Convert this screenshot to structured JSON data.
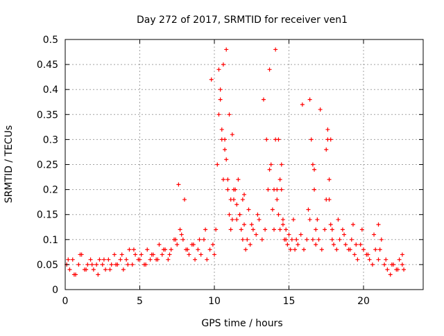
{
  "chart_data": {
    "type": "scatter",
    "title": "Day 272 of 2017, SRMTID for receiver ven1",
    "xlabel": "GPS time / hours",
    "ylabel": "SRMTID / TECUs",
    "xlim": [
      0,
      24
    ],
    "ylim": [
      0,
      0.5
    ],
    "grid": true,
    "marker": "+",
    "color": "#ff0000",
    "x_ticks": [
      {
        "value": 0,
        "label": "0"
      },
      {
        "value": 5,
        "label": "5"
      },
      {
        "value": 10,
        "label": "10"
      },
      {
        "value": 15,
        "label": "15"
      },
      {
        "value": 20,
        "label": "20"
      }
    ],
    "y_ticks": [
      {
        "value": 0,
        "label": "0"
      },
      {
        "value": 0.05,
        "label": "0.05"
      },
      {
        "value": 0.1,
        "label": "0.1"
      },
      {
        "value": 0.15,
        "label": "0.15"
      },
      {
        "value": 0.2,
        "label": "0.2"
      },
      {
        "value": 0.25,
        "label": "0.25"
      },
      {
        "value": 0.3,
        "label": "0.3"
      },
      {
        "value": 0.35,
        "label": "0.35"
      },
      {
        "value": 0.4,
        "label": "0.4"
      },
      {
        "value": 0.45,
        "label": "0.45"
      },
      {
        "value": 0.5,
        "label": "0.5"
      }
    ],
    "series": [
      {
        "name": "SRMTID",
        "x": [
          0.1,
          0.3,
          0.5,
          0.7,
          0.9,
          1.1,
          1.3,
          1.5,
          1.7,
          1.9,
          2.1,
          2.3,
          2.5,
          2.7,
          2.9,
          3.1,
          3.3,
          3.5,
          3.7,
          3.9,
          4.1,
          4.3,
          4.5,
          4.7,
          4.9,
          5.1,
          5.3,
          5.5,
          5.7,
          5.9,
          6.1,
          6.3,
          6.5,
          6.7,
          6.9,
          7.1,
          7.3,
          7.5,
          7.7,
          7.9,
          8.1,
          8.3,
          8.5,
          8.7,
          8.9,
          9.1,
          9.3,
          9.5,
          9.7,
          9.9,
          10.0,
          10.1,
          10.2,
          10.3,
          10.4,
          10.5,
          10.6,
          10.7,
          10.8,
          10.9,
          11.0,
          11.1,
          11.2,
          11.3,
          11.4,
          11.5,
          11.6,
          11.7,
          11.8,
          11.9,
          12.0,
          12.2,
          12.4,
          12.6,
          12.8,
          13.0,
          13.2,
          13.4,
          13.6,
          13.8,
          13.9,
          14.0,
          14.1,
          14.2,
          14.3,
          14.4,
          14.5,
          14.6,
          14.7,
          14.8,
          14.9,
          15.0,
          15.2,
          15.4,
          15.6,
          15.8,
          16.0,
          16.2,
          16.4,
          16.5,
          16.6,
          16.7,
          16.8,
          16.9,
          17.0,
          17.2,
          17.4,
          17.5,
          17.6,
          17.7,
          17.8,
          17.9,
          18.0,
          18.2,
          18.4,
          18.6,
          18.8,
          19.0,
          19.2,
          19.4,
          19.6,
          19.8,
          20.0,
          20.2,
          20.4,
          20.6,
          20.8,
          21.0,
          21.2,
          21.4,
          21.6,
          21.8,
          22.0,
          22.2,
          22.4,
          22.6,
          22.7,
          0.2,
          0.6,
          1.0,
          1.4,
          1.8,
          2.2,
          2.6,
          3.0,
          3.4,
          3.8,
          4.2,
          4.6,
          5.0,
          5.4,
          5.8,
          6.2,
          6.6,
          7.0,
          7.4,
          7.8,
          8.2,
          8.6,
          9.0,
          9.4,
          9.8,
          10.3,
          10.5,
          10.7,
          10.9,
          11.1,
          11.3,
          11.5,
          11.7,
          11.9,
          12.1,
          12.5,
          12.9,
          13.3,
          13.7,
          14.0,
          14.2,
          14.4,
          14.6,
          14.8,
          15.1,
          15.5,
          15.9,
          16.3,
          16.6,
          16.8,
          17.1,
          17.5,
          17.7,
          17.9,
          18.3,
          18.7,
          19.1,
          19.5,
          19.9,
          20.3,
          20.7,
          21.1,
          21.5,
          21.9,
          22.3,
          22.6,
          7.6,
          8.0,
          10.4,
          10.6,
          10.8,
          11.0,
          11.2,
          13.5,
          13.7,
          14.1,
          14.3,
          14.5,
          16.4,
          16.7,
          17.6,
          17.8,
          12.0,
          12.3,
          15.3,
          19.3,
          21.0
        ],
        "values": [
          0.05,
          0.04,
          0.06,
          0.03,
          0.05,
          0.07,
          0.04,
          0.05,
          0.06,
          0.04,
          0.05,
          0.06,
          0.05,
          0.04,
          0.06,
          0.05,
          0.07,
          0.05,
          0.06,
          0.04,
          0.06,
          0.08,
          0.05,
          0.07,
          0.06,
          0.07,
          0.05,
          0.08,
          0.06,
          0.07,
          0.06,
          0.09,
          0.07,
          0.08,
          0.06,
          0.08,
          0.1,
          0.09,
          0.12,
          0.1,
          0.08,
          0.07,
          0.09,
          0.06,
          0.08,
          0.07,
          0.1,
          0.06,
          0.08,
          0.09,
          0.07,
          0.12,
          0.25,
          0.35,
          0.38,
          0.3,
          0.22,
          0.28,
          0.26,
          0.2,
          0.15,
          0.12,
          0.14,
          0.18,
          0.2,
          0.17,
          0.22,
          0.15,
          0.12,
          0.18,
          0.13,
          0.1,
          0.09,
          0.12,
          0.11,
          0.14,
          0.1,
          0.12,
          0.2,
          0.25,
          0.16,
          0.12,
          0.3,
          0.2,
          0.15,
          0.22,
          0.25,
          0.14,
          0.1,
          0.12,
          0.09,
          0.11,
          0.1,
          0.08,
          0.09,
          0.11,
          0.08,
          0.1,
          0.14,
          0.3,
          0.25,
          0.2,
          0.12,
          0.14,
          0.1,
          0.08,
          0.12,
          0.18,
          0.3,
          0.22,
          0.13,
          0.1,
          0.09,
          0.08,
          0.1,
          0.12,
          0.09,
          0.08,
          0.1,
          0.07,
          0.06,
          0.09,
          0.08,
          0.07,
          0.06,
          0.05,
          0.08,
          0.06,
          0.1,
          0.05,
          0.04,
          0.03,
          0.05,
          0.04,
          0.06,
          0.05,
          0.04,
          0.06,
          0.03,
          0.07,
          0.04,
          0.05,
          0.03,
          0.06,
          0.04,
          0.05,
          0.07,
          0.05,
          0.08,
          0.06,
          0.05,
          0.07,
          0.06,
          0.08,
          0.07,
          0.1,
          0.11,
          0.08,
          0.09,
          0.1,
          0.12,
          0.42,
          0.44,
          0.32,
          0.3,
          0.22,
          0.18,
          0.2,
          0.14,
          0.15,
          0.1,
          0.08,
          0.13,
          0.15,
          0.38,
          0.24,
          0.2,
          0.18,
          0.12,
          0.13,
          0.1,
          0.08,
          0.1,
          0.37,
          0.16,
          0.1,
          0.09,
          0.36,
          0.28,
          0.18,
          0.12,
          0.14,
          0.11,
          0.08,
          0.09,
          0.12,
          0.07,
          0.11,
          0.08,
          0.06,
          0.05,
          0.04,
          0.07,
          0.21,
          0.18,
          0.4,
          0.45,
          0.48,
          0.35,
          0.31,
          0.3,
          0.44,
          0.48,
          0.3,
          0.2,
          0.38,
          0.24,
          0.32,
          0.3,
          0.19,
          0.16,
          0.14,
          0.13,
          0.13
        ]
      }
    ]
  }
}
